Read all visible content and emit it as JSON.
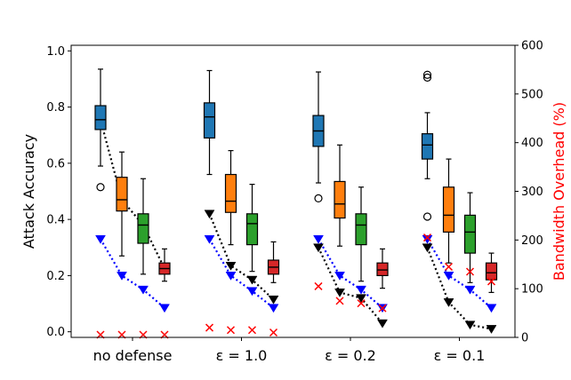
{
  "chart_data": {
    "type": "box",
    "categories": [
      "no defense",
      "ε = 1.0",
      "ε = 0.2",
      "ε = 0.1"
    ],
    "ylabel": "Attack Accuracy",
    "ylabel2": "Bandwidth Overhead (%)",
    "ylim": [
      -0.02,
      1.02
    ],
    "ylim2": [
      0,
      600
    ],
    "yticks": [
      "0.0",
      "0.2",
      "0.4",
      "0.6",
      "0.8",
      "1.0"
    ],
    "yticks2": [
      "0",
      "100",
      "200",
      "300",
      "400",
      "500",
      "600"
    ],
    "colors": {
      "box_series": [
        "#1f77b4",
        "#ff7f0e",
        "#2ca02c",
        "#d62728"
      ],
      "blue_marker": "#0000ff",
      "black_marker": "#000000",
      "x_marker": "#ff0000",
      "right_axis_label": "#ff0000"
    },
    "boxes": [
      [
        {
          "q1": 0.72,
          "med": 0.755,
          "q3": 0.805,
          "lo": 0.59,
          "hi": 0.935,
          "fliers": [
            0.515
          ]
        },
        {
          "q1": 0.43,
          "med": 0.47,
          "q3": 0.55,
          "lo": 0.27,
          "hi": 0.64,
          "fliers": []
        },
        {
          "q1": 0.315,
          "med": 0.38,
          "q3": 0.42,
          "lo": 0.205,
          "hi": 0.545,
          "fliers": []
        },
        {
          "q1": 0.205,
          "med": 0.225,
          "q3": 0.245,
          "lo": 0.18,
          "hi": 0.295,
          "fliers": []
        }
      ],
      [
        {
          "q1": 0.69,
          "med": 0.765,
          "q3": 0.815,
          "lo": 0.56,
          "hi": 0.93,
          "fliers": []
        },
        {
          "q1": 0.425,
          "med": 0.465,
          "q3": 0.56,
          "lo": 0.31,
          "hi": 0.645,
          "fliers": []
        },
        {
          "q1": 0.31,
          "med": 0.385,
          "q3": 0.42,
          "lo": 0.215,
          "hi": 0.525,
          "fliers": []
        },
        {
          "q1": 0.205,
          "med": 0.23,
          "q3": 0.255,
          "lo": 0.175,
          "hi": 0.32,
          "fliers": []
        }
      ],
      [
        {
          "q1": 0.66,
          "med": 0.715,
          "q3": 0.77,
          "lo": 0.53,
          "hi": 0.925,
          "fliers": [
            0.475
          ]
        },
        {
          "q1": 0.405,
          "med": 0.455,
          "q3": 0.535,
          "lo": 0.305,
          "hi": 0.665,
          "fliers": []
        },
        {
          "q1": 0.31,
          "med": 0.38,
          "q3": 0.42,
          "lo": 0.18,
          "hi": 0.515,
          "fliers": []
        },
        {
          "q1": 0.2,
          "med": 0.22,
          "q3": 0.245,
          "lo": 0.155,
          "hi": 0.295,
          "fliers": []
        }
      ],
      [
        {
          "q1": 0.615,
          "med": 0.665,
          "q3": 0.705,
          "lo": 0.545,
          "hi": 0.78,
          "fliers": [
            0.905,
            0.915,
            0.41
          ]
        },
        {
          "q1": 0.355,
          "med": 0.415,
          "q3": 0.515,
          "lo": 0.245,
          "hi": 0.615,
          "fliers": []
        },
        {
          "q1": 0.28,
          "med": 0.355,
          "q3": 0.415,
          "lo": 0.175,
          "hi": 0.495,
          "fliers": []
        },
        {
          "q1": 0.185,
          "med": 0.21,
          "q3": 0.245,
          "lo": 0.14,
          "hi": 0.28,
          "fliers": []
        }
      ]
    ],
    "blue_triangles": [
      [
        0.33,
        0.2,
        0.15,
        0.085
      ],
      [
        0.33,
        0.2,
        0.145,
        0.085
      ],
      [
        0.33,
        0.2,
        0.15,
        0.085
      ],
      [
        0.33,
        0.2,
        0.15,
        0.085
      ]
    ],
    "black_triangles": [
      [
        null,
        null,
        null,
        null
      ],
      [
        0.42,
        0.235,
        0.185,
        0.115
      ],
      [
        0.3,
        0.14,
        0.12,
        0.03
      ],
      [
        0.3,
        0.105,
        0.025,
        0.01
      ]
    ],
    "bandwidth_overhead_x": [
      [
        0,
        0,
        0,
        0
      ],
      [
        20,
        15,
        15,
        10
      ],
      [
        105,
        75,
        70,
        60
      ],
      [
        205,
        145,
        135,
        115
      ]
    ]
  }
}
